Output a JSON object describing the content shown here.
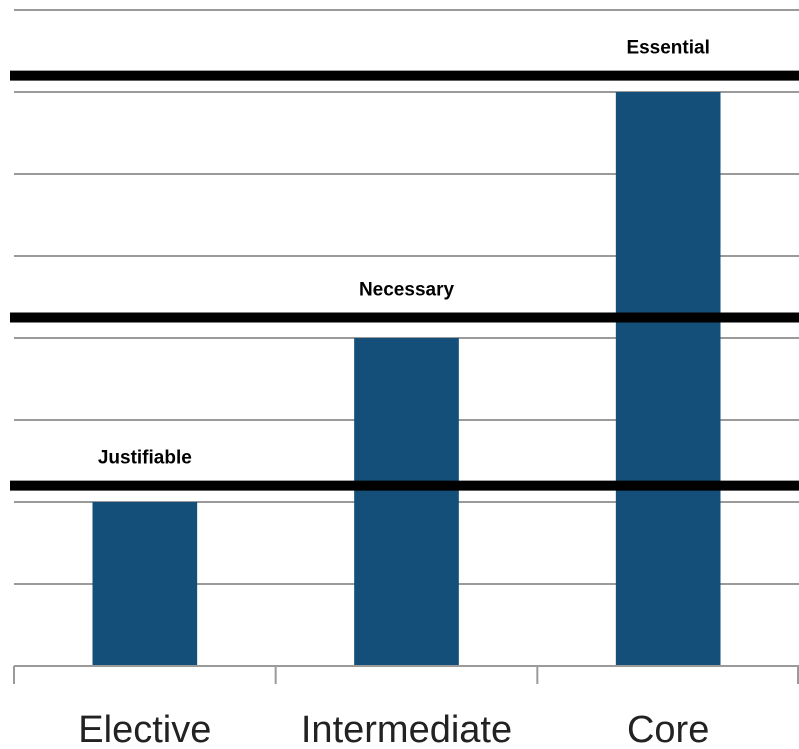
{
  "chart_data": {
    "type": "bar",
    "title": "",
    "xlabel": "",
    "ylabel": "",
    "categories": [
      "Elective",
      "Intermediate",
      "Core"
    ],
    "values": [
      2,
      4,
      7
    ],
    "ylim": [
      0,
      8
    ],
    "grid": true,
    "bar_color": "#134f78",
    "thresholds": [
      {
        "label": "Justifiable",
        "value": 2.2
      },
      {
        "label": "Necessary",
        "value": 4.25
      },
      {
        "label": "Essential",
        "value": 7.2
      }
    ]
  }
}
